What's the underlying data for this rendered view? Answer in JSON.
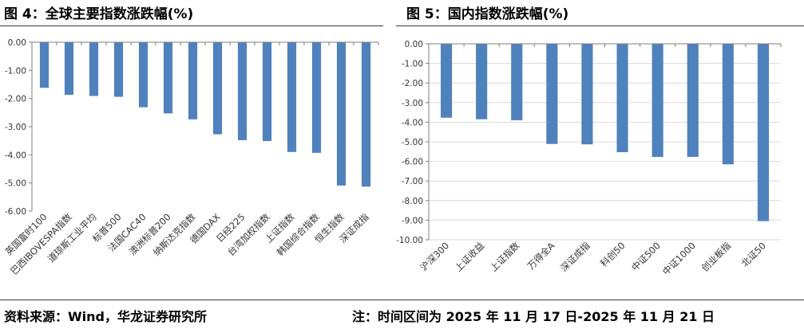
{
  "figures": [
    {
      "title": "图 4：全球主要指数涨跌幅(%)"
    },
    {
      "title": "图 5：国内指数涨跌幅(%)"
    }
  ],
  "source_note": "资料来源：Wind，华龙证券研究所",
  "time_note": "注：时间区间为 2025 年 11 月 17 日-2025 年 11 月 21 日",
  "colors": {
    "bar": "#4f81bd",
    "axis": "#7f7f7f",
    "grid": "#d9d9d9"
  },
  "chart_data": [
    {
      "type": "bar",
      "title": "图 4：全球主要指数涨跌幅(%)",
      "categories": [
        "英国富时100",
        "巴西IBOVESPA指数",
        "道琼斯工业平均",
        "标普500",
        "法国CAC40",
        "澳洲标普200",
        "纳斯达克指数",
        "德国DAX",
        "日经225",
        "台湾加权指数",
        "上证指数",
        "韩国综合指数",
        "恒生指数",
        "深证成指"
      ],
      "values": [
        -1.62,
        -1.87,
        -1.91,
        -1.94,
        -2.31,
        -2.53,
        -2.74,
        -3.27,
        -3.48,
        -3.51,
        -3.9,
        -3.93,
        -5.09,
        -5.13
      ],
      "ylim": [
        -6.0,
        0.0
      ],
      "yticks": [
        "0.00",
        "-1.00",
        "-2.00",
        "-3.00",
        "-4.00",
        "-5.00",
        "-6.00"
      ],
      "grid": false
    },
    {
      "type": "bar",
      "title": "图 5：国内指数涨跌幅(%)",
      "categories": [
        "沪深300",
        "上证收益",
        "上证指数",
        "万得全A",
        "深证成指",
        "科创50",
        "中证500",
        "中证1000",
        "创业板指",
        "北证50"
      ],
      "values": [
        -3.77,
        -3.85,
        -3.9,
        -5.11,
        -5.13,
        -5.53,
        -5.77,
        -5.77,
        -6.15,
        -9.05
      ],
      "ylim": [
        -10.0,
        0.0
      ],
      "yticks": [
        "0.00",
        "-1.00",
        "-2.00",
        "-3.00",
        "-4.00",
        "-5.00",
        "-6.00",
        "-7.00",
        "-8.00",
        "-9.00",
        "-10.00"
      ],
      "grid": true
    }
  ]
}
